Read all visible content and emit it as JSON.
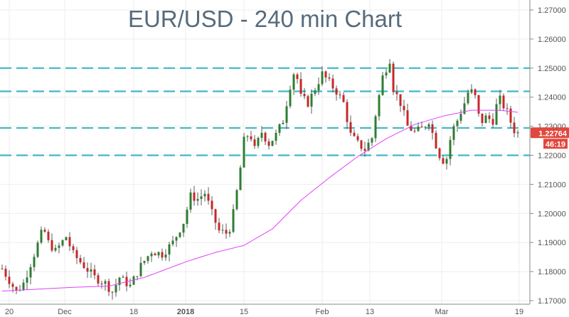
{
  "chart_data": {
    "type": "candlestick",
    "title": "EUR/USD - 240 min Chart",
    "ylim": [
      1.17,
      1.27
    ],
    "y_ticks": [
      "1.27000",
      "1.26000",
      "1.25000",
      "1.24000",
      "1.23000",
      "1.22000",
      "1.21000",
      "1.20000",
      "1.19000",
      "1.18000",
      "1.17000"
    ],
    "x_ticks": [
      {
        "label": "20",
        "bar": 2
      },
      {
        "label": "Dec",
        "bar": 17.6
      },
      {
        "label": "18",
        "bar": 37
      },
      {
        "label": "2018",
        "bar": 51.6
      },
      {
        "label": "15",
        "bar": 68
      },
      {
        "label": "Feb",
        "bar": 90
      },
      {
        "label": "13",
        "bar": 103.4
      },
      {
        "label": "Mar",
        "bar": 123.6
      },
      {
        "label": "19",
        "bar": 145.4
      }
    ],
    "price_path": [
      [
        0,
        1.181
      ],
      [
        2,
        1.177
      ],
      [
        4,
        1.173
      ],
      [
        6,
        1.176
      ],
      [
        9,
        1.186
      ],
      [
        11.6,
        1.195
      ],
      [
        13,
        1.19
      ],
      [
        15,
        1.187
      ],
      [
        18,
        1.192
      ],
      [
        20,
        1.186
      ],
      [
        23,
        1.182
      ],
      [
        26,
        1.178
      ],
      [
        29,
        1.176
      ],
      [
        31,
        1.173
      ],
      [
        33,
        1.178
      ],
      [
        36,
        1.175
      ],
      [
        39,
        1.182
      ],
      [
        42,
        1.187
      ],
      [
        45,
        1.186
      ],
      [
        48,
        1.19
      ],
      [
        51,
        1.197
      ],
      [
        53,
        1.206
      ],
      [
        55,
        1.205
      ],
      [
        57,
        1.207
      ],
      [
        59,
        1.2
      ],
      [
        61,
        1.194
      ],
      [
        63.6,
        1.193
      ],
      [
        65,
        1.2
      ],
      [
        66.6,
        1.212
      ],
      [
        68,
        1.225
      ],
      [
        69.6,
        1.228
      ],
      [
        71,
        1.222
      ],
      [
        73,
        1.228
      ],
      [
        75,
        1.224
      ],
      [
        77,
        1.227
      ],
      [
        79,
        1.232
      ],
      [
        81,
        1.244
      ],
      [
        82.4,
        1.25
      ],
      [
        84,
        1.24
      ],
      [
        86,
        1.238
      ],
      [
        88,
        1.243
      ],
      [
        90,
        1.248
      ],
      [
        92,
        1.245
      ],
      [
        94,
        1.242
      ],
      [
        96,
        1.238
      ],
      [
        98,
        1.227
      ],
      [
        100,
        1.224
      ],
      [
        102,
        1.222
      ],
      [
        104,
        1.226
      ],
      [
        105,
        1.234
      ],
      [
        107,
        1.247
      ],
      [
        109,
        1.253
      ],
      [
        110,
        1.243
      ],
      [
        112,
        1.238
      ],
      [
        114,
        1.23
      ],
      [
        116,
        1.228
      ],
      [
        118,
        1.229
      ],
      [
        120,
        1.232
      ],
      [
        121.6,
        1.225
      ],
      [
        123.6,
        1.218
      ],
      [
        125,
        1.219
      ],
      [
        126.4,
        1.228
      ],
      [
        128,
        1.232
      ],
      [
        130,
        1.238
      ],
      [
        131.4,
        1.243
      ],
      [
        133,
        1.24
      ],
      [
        134.4,
        1.231
      ],
      [
        136,
        1.233
      ],
      [
        138,
        1.232
      ],
      [
        139.6,
        1.24
      ],
      [
        141,
        1.237
      ],
      [
        142.4,
        1.234
      ],
      [
        143.6,
        1.229
      ],
      [
        145,
        1.22764
      ]
    ],
    "moving_average": [
      [
        0,
        1.1733
      ],
      [
        20,
        1.1746
      ],
      [
        30,
        1.175
      ],
      [
        40,
        1.178
      ],
      [
        52,
        1.1835
      ],
      [
        60,
        1.1866
      ],
      [
        68,
        1.189
      ],
      [
        76,
        1.1947
      ],
      [
        84,
        1.2045
      ],
      [
        92,
        1.2123
      ],
      [
        100,
        1.2196
      ],
      [
        108,
        1.2257
      ],
      [
        116,
        1.2306
      ],
      [
        124,
        1.2335
      ],
      [
        132,
        1.2355
      ],
      [
        140,
        1.2355
      ],
      [
        145,
        1.2348
      ]
    ],
    "horizontal_levels": [
      1.25,
      1.242,
      1.2294,
      1.22
    ],
    "last_price": "1.22764",
    "countdown": "46:19",
    "colors": {
      "up": "#2e7d32",
      "down": "#c62828",
      "ma": "#e040fb",
      "levels": "#3fb8c9",
      "label": "#e0473d",
      "title": "#566b7c"
    }
  }
}
